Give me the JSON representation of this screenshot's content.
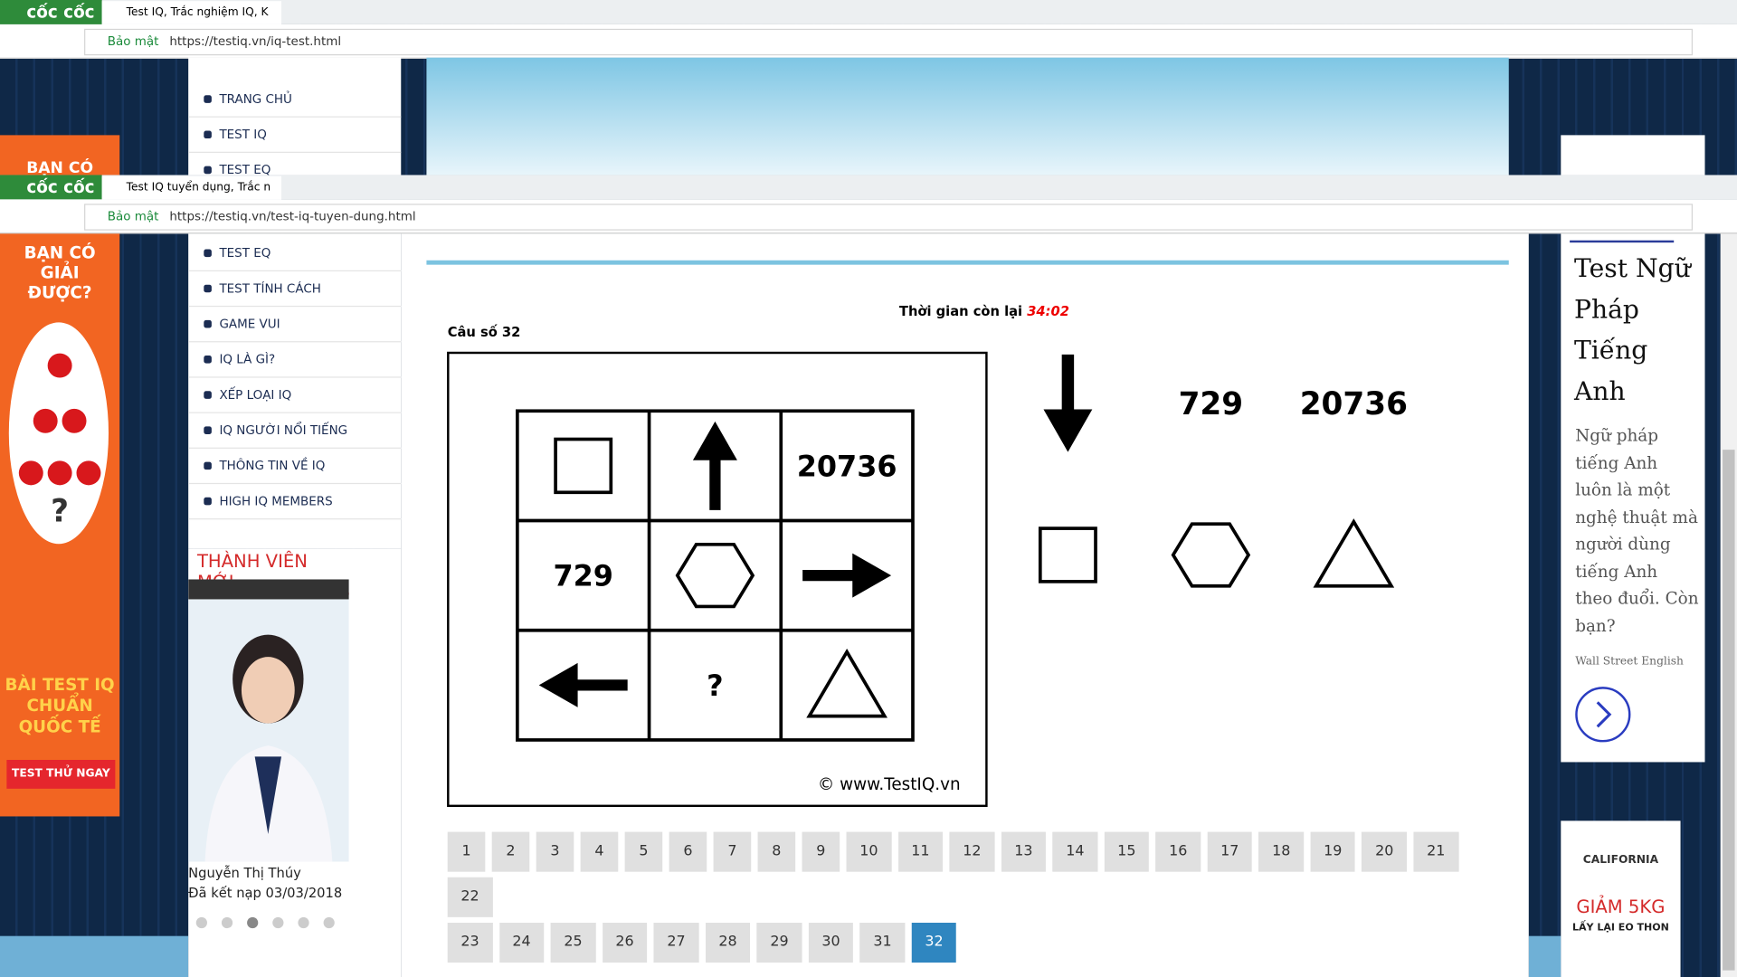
{
  "back_window": {
    "brand": "cốc cốc",
    "tab_title": "Test IQ, Trắc nghiệm IQ, K",
    "security": "Bảo mật",
    "url": "https://testiq.vn/iq-test.html",
    "nav": [
      "TRANG CHỦ",
      "TEST IQ",
      "TEST EQ"
    ],
    "ad_text": "BẠN CÓ"
  },
  "front_window": {
    "brand": "cốc cốc",
    "tab_title": "Test IQ tuyển dụng, Trắc n",
    "security": "Bảo mật",
    "url": "https://testiq.vn/test-iq-tuyen-dung.html"
  },
  "left_ad": {
    "headline": "BẠN CÓ GIẢI ĐƯỢC?",
    "question_mark": "?",
    "tagline": [
      "BÀI TEST IQ",
      "CHUẨN",
      "QUỐC TẾ"
    ],
    "button": "TEST THỬ NGAY"
  },
  "nav": [
    "TEST EQ",
    "TEST TÍNH CÁCH",
    "GAME VUI",
    "IQ LÀ GÌ?",
    "XẾP LOẠI IQ",
    "IQ NGƯỜI NỔI TIẾNG",
    "THÔNG TIN VỀ IQ",
    "HIGH IQ MEMBERS"
  ],
  "new_member": {
    "heading": "THÀNH VIÊN MỚI",
    "name": "Nguyễn Thị Thúy",
    "joined": "Đã kết nạp 03/03/2018"
  },
  "timer": {
    "label": "Thời gian còn lại",
    "value": "34:02"
  },
  "question": {
    "label": "Câu số 32",
    "grid": [
      {
        "shape": "square"
      },
      {
        "shape": "arrow-up"
      },
      {
        "text": "20736"
      },
      {
        "text": "729"
      },
      {
        "shape": "hexagon"
      },
      {
        "shape": "arrow-right"
      },
      {
        "shape": "arrow-left"
      },
      {
        "text": "?"
      },
      {
        "shape": "triangle"
      }
    ],
    "watermark": "© www.TestIQ.vn",
    "options": [
      {
        "shape": "arrow-down"
      },
      {
        "text": "729"
      },
      {
        "text": "20736"
      },
      {
        "shape": "square"
      },
      {
        "shape": "hexagon"
      },
      {
        "shape": "triangle"
      }
    ]
  },
  "pagination": {
    "pages": [
      1,
      2,
      3,
      4,
      5,
      6,
      7,
      8,
      9,
      10,
      11,
      12,
      13,
      14,
      15,
      16,
      17,
      18,
      19,
      20,
      21,
      22,
      23,
      24,
      25,
      26,
      27,
      28,
      29,
      30,
      31,
      32
    ],
    "current": 32
  },
  "right_ad": {
    "title": "Test Ngữ Pháp Tiếng Anh",
    "body": "Ngữ pháp tiếng Anh luôn là một nghệ thuật mà người dùng tiếng Anh theo đuổi. Còn bạn?",
    "source": "Wall Street English"
  },
  "right_ad2": {
    "brand": "CALIFORNIA",
    "headline": "GIẢM 5KG",
    "sub": "LẤY LẠI EO THON"
  }
}
